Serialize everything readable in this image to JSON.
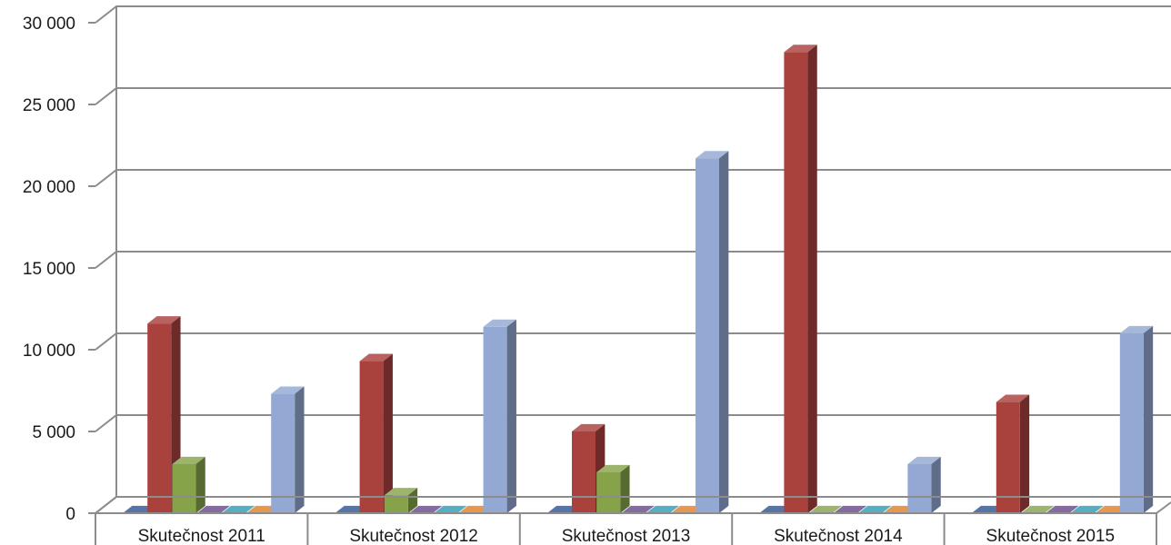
{
  "chart_data": {
    "type": "bar",
    "title": "",
    "xlabel": "",
    "ylabel": "",
    "ylim": [
      0,
      30000
    ],
    "yticks": [
      0,
      5000,
      10000,
      15000,
      20000,
      25000,
      30000
    ],
    "ytick_labels": [
      "0",
      "5 000",
      "10 000",
      "15 000",
      "20 000",
      "25 000",
      "30 000"
    ],
    "grid": true,
    "legend": "none",
    "style": "3d-column",
    "categories": [
      "Skutečnost 2011",
      "Skutečnost 2012",
      "Skutečnost 2013",
      "Skutečnost 2014",
      "Skutečnost 2015"
    ],
    "series": [
      {
        "color": "#2f5597",
        "values": [
          0,
          0,
          0,
          0,
          0
        ]
      },
      {
        "color": "#a9413d",
        "values": [
          11600,
          9300,
          5000,
          28200,
          6800
        ]
      },
      {
        "color": "#86a34a",
        "values": [
          3000,
          1100,
          2500,
          0,
          0
        ]
      },
      {
        "color": "#6a4a8c",
        "values": [
          0,
          0,
          0,
          0,
          0
        ]
      },
      {
        "color": "#2e9db5",
        "values": [
          0,
          0,
          0,
          0,
          0
        ]
      },
      {
        "color": "#e0802a",
        "values": [
          0,
          0,
          0,
          0,
          0
        ]
      },
      {
        "color": "#93a8d2",
        "values": [
          7300,
          11400,
          21700,
          3000,
          11000
        ]
      }
    ]
  }
}
